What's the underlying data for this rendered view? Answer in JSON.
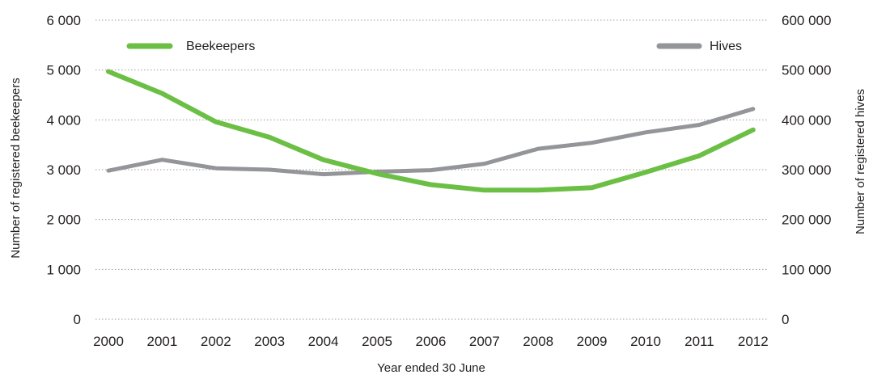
{
  "chart_data": {
    "type": "line",
    "x": [
      "2000",
      "2001",
      "2002",
      "2003",
      "2004",
      "2005",
      "2006",
      "2007",
      "2008",
      "2009",
      "2010",
      "2011",
      "2012"
    ],
    "xlabel": "Year ended 30 June",
    "ylabel_left": "Number of registered  beekeepers",
    "ylabel_right": "Number of registered  hives",
    "ylim_left": [
      0,
      6000
    ],
    "ylim_right": [
      0,
      600000
    ],
    "yticks_left": [
      "0",
      "1 000",
      "2 000",
      "3 000",
      "4 000",
      "5 000",
      "6 000"
    ],
    "yticks_right": [
      "0",
      "100 000",
      "200 000",
      "300 000",
      "400 000",
      "500 000",
      "600 000"
    ],
    "grid": true,
    "legend_placement": "top",
    "series": [
      {
        "name": "Beekeepers",
        "axis": "left",
        "color": "#6cbf45",
        "values": [
          4970,
          4530,
          3960,
          3650,
          3200,
          2920,
          2700,
          2590,
          2590,
          2640,
          2950,
          3280,
          3800
        ]
      },
      {
        "name": "Hives",
        "axis": "right",
        "color": "#939598",
        "values": [
          298000,
          320000,
          303000,
          300000,
          291000,
          296000,
          299000,
          312000,
          342000,
          354000,
          375000,
          390000,
          422000
        ]
      }
    ]
  }
}
